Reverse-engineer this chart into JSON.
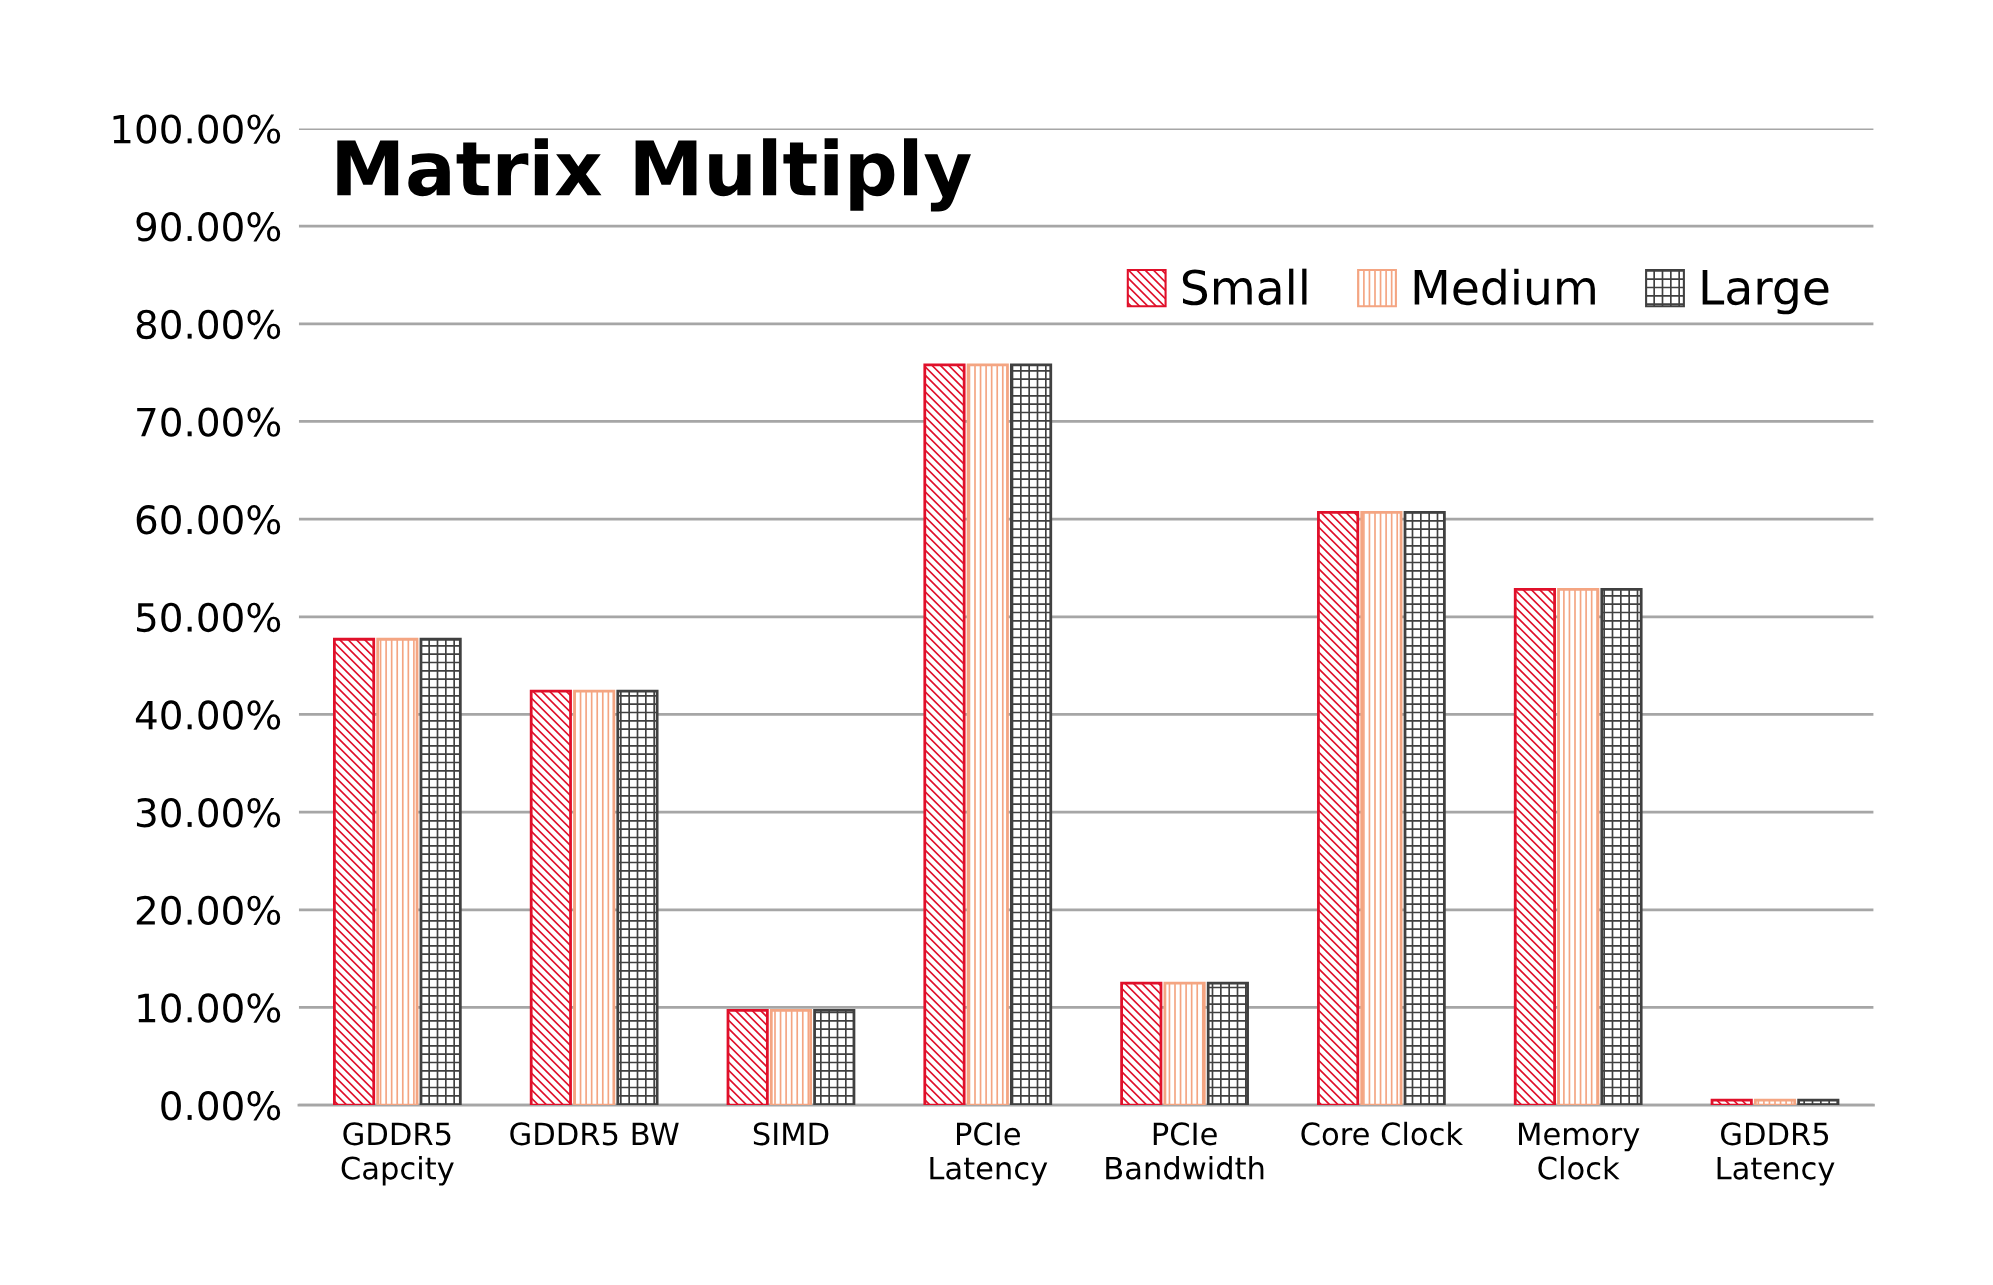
{
  "chart_data": {
    "type": "bar",
    "title": "Matrix Multiply",
    "categories": [
      "GDDR5\nCapcity",
      "GDDR5 BW",
      "SIMD",
      "PCIe\nLatency",
      "PCIe\nBandwidth",
      "Core Clock",
      "Memory\nClock",
      "GDDR5\nLatency"
    ],
    "series": [
      {
        "name": "Small",
        "color": "#e0102a",
        "values": [
          47.7,
          42.4,
          9.7,
          75.8,
          12.5,
          60.7,
          52.8,
          0.5
        ]
      },
      {
        "name": "Medium",
        "color": "#f4a582",
        "values": [
          47.7,
          42.4,
          9.7,
          75.8,
          12.5,
          60.7,
          52.8,
          0.5
        ]
      },
      {
        "name": "Large",
        "color": "#404040",
        "values": [
          47.7,
          42.4,
          9.7,
          75.8,
          12.5,
          60.7,
          52.8,
          0.5
        ]
      }
    ],
    "ylim": [
      0,
      100
    ],
    "yticks": [
      {
        "value": 0,
        "label": "0.00%"
      },
      {
        "value": 10,
        "label": "10.00%"
      },
      {
        "value": 20,
        "label": "20.00%"
      },
      {
        "value": 30,
        "label": "30.00%"
      },
      {
        "value": 40,
        "label": "40.00%"
      },
      {
        "value": 50,
        "label": "50.00%"
      },
      {
        "value": 60,
        "label": "60.00%"
      },
      {
        "value": 70,
        "label": "70.00%"
      },
      {
        "value": 80,
        "label": "80.00%"
      },
      {
        "value": 90,
        "label": "90.00%"
      },
      {
        "value": 100,
        "label": "100.00%"
      }
    ],
    "grid": "y",
    "legend": "top right"
  }
}
